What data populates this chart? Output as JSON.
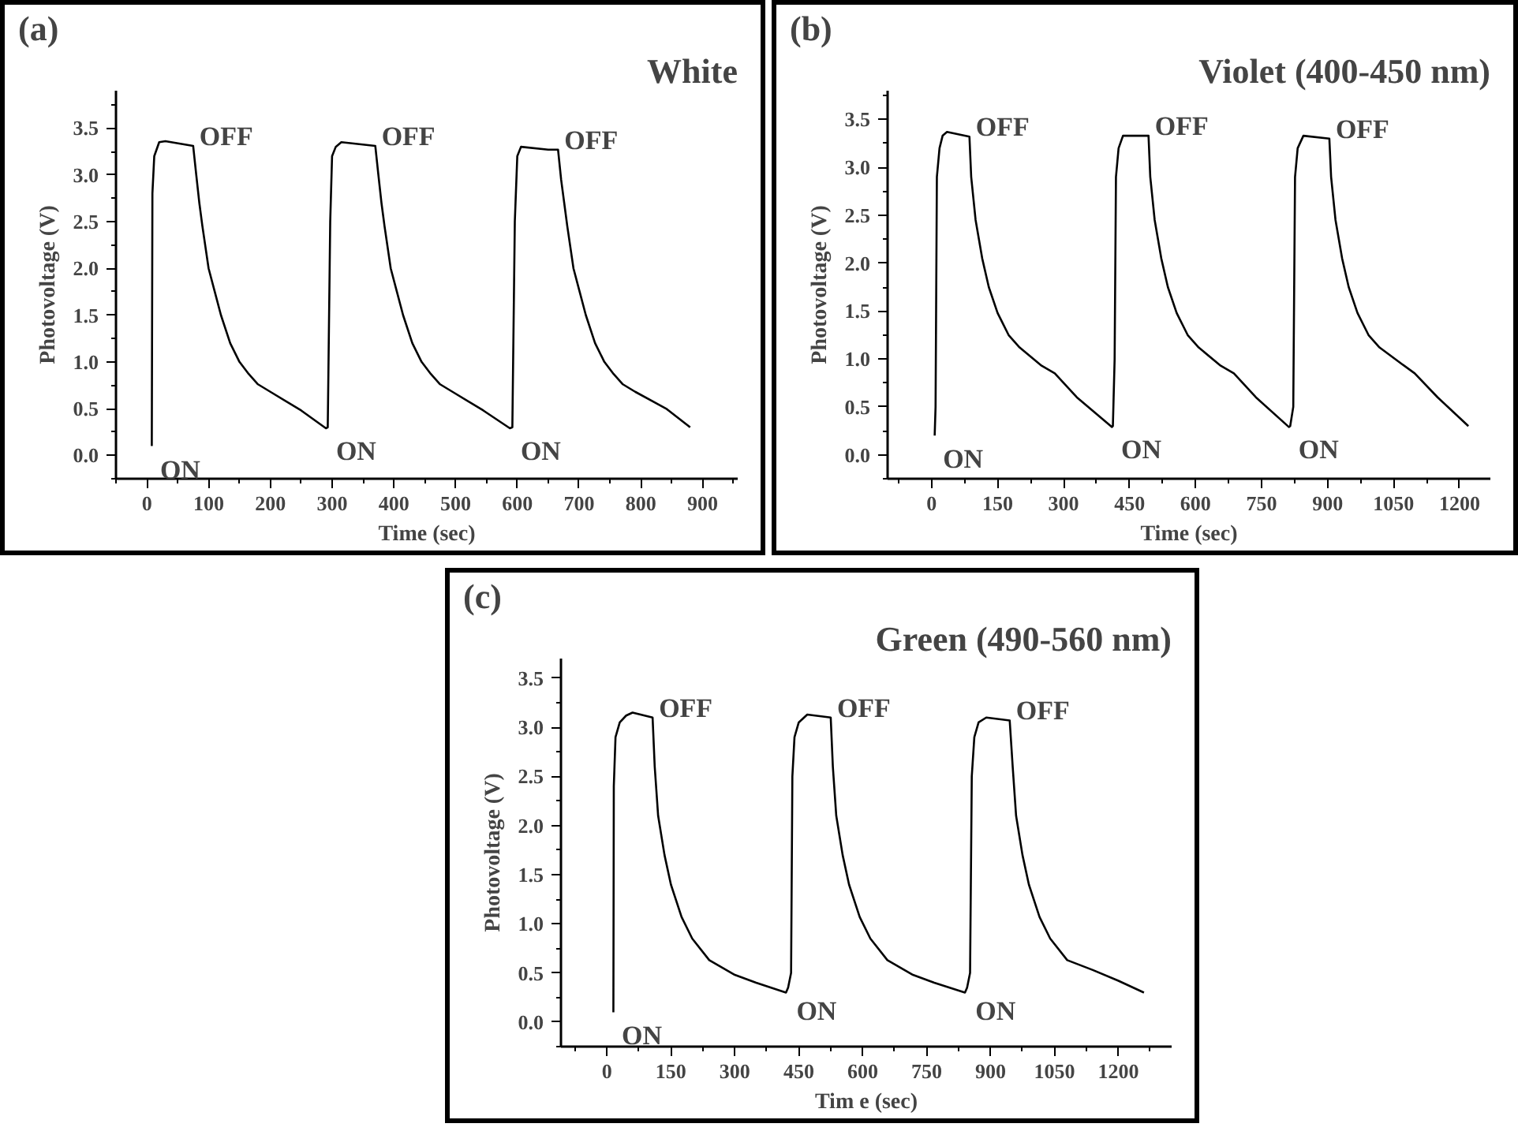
{
  "chart_data": [
    {
      "type": "line",
      "title": "(a)",
      "subtitle": "White",
      "xlabel": "Time (sec)",
      "ylabel": "Photovoltage (V)",
      "xlim": [
        -50,
        957
      ],
      "xticks": [
        0,
        100,
        200,
        300,
        400,
        500,
        600,
        700,
        800,
        900
      ],
      "ylim": [
        -0.25,
        3.9
      ],
      "yticks": [
        {
          "value": 0,
          "label": "0.0"
        },
        0.5,
        {
          "value": 1,
          "label": "1.0"
        },
        1.5,
        {
          "value": 2,
          "label": "2.0"
        },
        2.5,
        {
          "value": 3,
          "label": "3.0"
        },
        3.5
      ],
      "series": [
        {
          "color": "#000000",
          "x": [
            8,
            9,
            12,
            20,
            30,
            75,
            80,
            85,
            90,
            100,
            110,
            120,
            135,
            150,
            165,
            180,
            200,
            250,
            290,
            293,
            297,
            300,
            306,
            315,
            370,
            375,
            380,
            385,
            395,
            405,
            415,
            430,
            445,
            460,
            475,
            495,
            545,
            588,
            592,
            596,
            600,
            606,
            650,
            666,
            671,
            676,
            681,
            691,
            701,
            711,
            726,
            741,
            756,
            771,
            791,
            841,
            880
          ],
          "values": [
            0.1,
            2.8,
            3.2,
            3.35,
            3.36,
            3.31,
            3.0,
            2.7,
            2.45,
            2.0,
            1.75,
            1.5,
            1.2,
            1.0,
            0.87,
            0.76,
            0.68,
            0.48,
            0.29,
            0.3,
            2.5,
            3.2,
            3.3,
            3.35,
            3.31,
            3.0,
            2.7,
            2.45,
            2.0,
            1.75,
            1.5,
            1.2,
            1.0,
            0.87,
            0.76,
            0.68,
            0.48,
            0.29,
            0.3,
            2.5,
            3.2,
            3.3,
            3.27,
            3.27,
            2.95,
            2.7,
            2.45,
            2.0,
            1.75,
            1.5,
            1.2,
            1.0,
            0.87,
            0.76,
            0.68,
            0.5,
            0.3
          ]
        }
      ],
      "annotations": [
        {
          "text": "OFF",
          "x": 75,
          "y": 3.31
        },
        {
          "text": "OFF",
          "x": 370,
          "y": 3.31
        },
        {
          "text": "OFF",
          "x": 666,
          "y": 3.27
        },
        {
          "text": "ON",
          "x": 8,
          "y": 0.1
        },
        {
          "text": "ON",
          "x": 293,
          "y": 0.3
        },
        {
          "text": "ON",
          "x": 592,
          "y": 0.3
        }
      ]
    },
    {
      "type": "line",
      "title": "(b)",
      "subtitle": "Violet (400-450 nm)",
      "xlabel": "Time (sec)",
      "ylabel": "Photovoltage (V)",
      "xlim": [
        -100,
        1270
      ],
      "xticks": [
        0,
        150,
        300,
        450,
        600,
        750,
        900,
        1050,
        1200
      ],
      "ylim": [
        -0.25,
        3.8
      ],
      "yticks": [
        {
          "value": 0,
          "label": "0.0"
        },
        0.5,
        {
          "value": 1,
          "label": "1.0"
        },
        1.5,
        {
          "value": 2,
          "label": "2.0"
        },
        2.5,
        {
          "value": 3,
          "label": "3.0"
        },
        3.5
      ],
      "series": [
        {
          "color": "#000000",
          "x": [
            7,
            9,
            12,
            18,
            25,
            35,
            86,
            90,
            100,
            115,
            130,
            150,
            175,
            200,
            250,
            280,
            330,
            410,
            412,
            416,
            419,
            425,
            435,
            493,
            497,
            507,
            522,
            537,
            557,
            582,
            607,
            657,
            687,
            737,
            812,
            815,
            822,
            826,
            832,
            845,
            904,
            908,
            918,
            933,
            948,
            968,
            993,
            1018,
            1068,
            1098,
            1150,
            1220
          ],
          "values": [
            0.2,
            0.5,
            2.9,
            3.2,
            3.33,
            3.37,
            3.32,
            2.9,
            2.45,
            2.05,
            1.75,
            1.48,
            1.25,
            1.12,
            0.93,
            0.85,
            0.6,
            0.29,
            0.3,
            1.0,
            2.9,
            3.2,
            3.33,
            3.33,
            2.9,
            2.45,
            2.05,
            1.75,
            1.48,
            1.25,
            1.12,
            0.93,
            0.85,
            0.6,
            0.29,
            0.3,
            0.5,
            2.9,
            3.2,
            3.33,
            3.3,
            2.9,
            2.45,
            2.05,
            1.75,
            1.48,
            1.25,
            1.12,
            0.95,
            0.85,
            0.6,
            0.3
          ]
        }
      ],
      "annotations": [
        {
          "text": "OFF",
          "x": 86,
          "y": 3.32
        },
        {
          "text": "OFF",
          "x": 493,
          "y": 3.33
        },
        {
          "text": "OFF",
          "x": 904,
          "y": 3.3
        },
        {
          "text": "ON",
          "x": 7,
          "y": 0.2
        },
        {
          "text": "ON",
          "x": 412,
          "y": 0.3
        },
        {
          "text": "ON",
          "x": 815,
          "y": 0.3
        }
      ]
    },
    {
      "type": "line",
      "title": "(c)",
      "subtitle": "Green (490-560 nm)",
      "xlabel": "Tim e (sec)",
      "ylabel": "Photovoltage (V)",
      "xlim": [
        -108,
        1325
      ],
      "xticks": [
        0,
        150,
        300,
        450,
        600,
        750,
        900,
        1050,
        1200
      ],
      "ylim": [
        -0.25,
        3.7
      ],
      "yticks": [
        {
          "value": 0,
          "label": "0.0"
        },
        0.5,
        {
          "value": 1,
          "label": "1.0"
        },
        1.5,
        {
          "value": 2,
          "label": "2.0"
        },
        2.5,
        {
          "value": 3,
          "label": "3.0"
        },
        3.5
      ],
      "series": [
        {
          "color": "#000000",
          "x": [
            15,
            16,
            20,
            30,
            45,
            60,
            107,
            112,
            120,
            135,
            150,
            175,
            200,
            240,
            300,
            350,
            420,
            425,
            432,
            435,
            440,
            450,
            470,
            525,
            530,
            538,
            553,
            568,
            593,
            618,
            658,
            718,
            768,
            840,
            845,
            852,
            856,
            862,
            872,
            890,
            945,
            952,
            960,
            975,
            990,
            1015,
            1040,
            1080,
            1140,
            1200,
            1260
          ],
          "values": [
            0.1,
            2.4,
            2.9,
            3.05,
            3.12,
            3.15,
            3.1,
            2.6,
            2.1,
            1.7,
            1.4,
            1.07,
            0.85,
            0.63,
            0.48,
            0.4,
            0.3,
            0.35,
            0.5,
            2.5,
            2.9,
            3.05,
            3.13,
            3.1,
            2.6,
            2.1,
            1.7,
            1.4,
            1.07,
            0.85,
            0.63,
            0.48,
            0.4,
            0.3,
            0.35,
            0.5,
            2.5,
            2.9,
            3.05,
            3.1,
            3.07,
            2.6,
            2.1,
            1.7,
            1.4,
            1.07,
            0.85,
            0.63,
            0.53,
            0.42,
            0.3
          ]
        }
      ],
      "annotations": [
        {
          "text": "OFF",
          "x": 107,
          "y": 3.1
        },
        {
          "text": "OFF",
          "x": 525,
          "y": 3.1
        },
        {
          "text": "OFF",
          "x": 945,
          "y": 3.07
        },
        {
          "text": "ON",
          "x": 15,
          "y": 0.1
        },
        {
          "text": "ON",
          "x": 425,
          "y": 0.35
        },
        {
          "text": "ON",
          "x": 845,
          "y": 0.35
        }
      ]
    }
  ]
}
